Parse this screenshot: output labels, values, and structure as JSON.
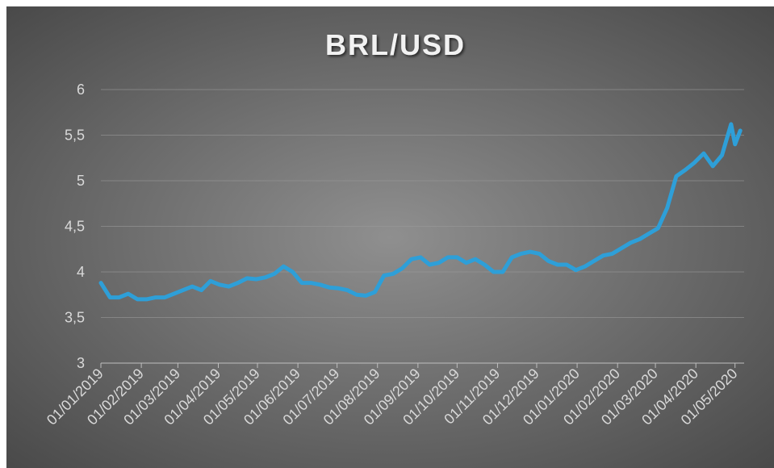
{
  "chart_data": {
    "type": "line",
    "title": "BRL/USD",
    "x": [
      "01/01/2019",
      "08/01/2019",
      "15/01/2019",
      "22/01/2019",
      "29/01/2019",
      "05/02/2019",
      "12/02/2019",
      "19/02/2019",
      "26/02/2019",
      "05/03/2019",
      "12/03/2019",
      "19/03/2019",
      "26/03/2019",
      "02/04/2019",
      "09/04/2019",
      "16/04/2019",
      "23/04/2019",
      "30/04/2019",
      "07/05/2019",
      "14/05/2019",
      "21/05/2019",
      "28/05/2019",
      "04/06/2019",
      "11/06/2019",
      "18/06/2019",
      "25/06/2019",
      "02/07/2019",
      "09/07/2019",
      "16/07/2019",
      "23/07/2019",
      "30/07/2019",
      "06/08/2019",
      "13/08/2019",
      "20/08/2019",
      "27/08/2019",
      "03/09/2019",
      "10/09/2019",
      "17/09/2019",
      "24/09/2019",
      "01/10/2019",
      "08/10/2019",
      "15/10/2019",
      "22/10/2019",
      "29/10/2019",
      "05/11/2019",
      "12/11/2019",
      "19/11/2019",
      "26/11/2019",
      "03/12/2019",
      "10/12/2019",
      "17/12/2019",
      "24/12/2019",
      "31/12/2019",
      "07/01/2020",
      "14/01/2020",
      "21/01/2020",
      "28/01/2020",
      "04/02/2020",
      "11/02/2020",
      "18/02/2020",
      "25/02/2020",
      "03/03/2020",
      "10/03/2020",
      "17/03/2020",
      "24/03/2020",
      "31/03/2020",
      "07/04/2020",
      "14/04/2020",
      "21/04/2020",
      "28/04/2020",
      "01/05/2020",
      "05/05/2020"
    ],
    "series": [
      {
        "name": "BRL/USD",
        "color": "#2e9fd8",
        "values": [
          3.88,
          3.72,
          3.72,
          3.76,
          3.7,
          3.7,
          3.72,
          3.72,
          3.76,
          3.8,
          3.84,
          3.8,
          3.9,
          3.86,
          3.84,
          3.88,
          3.93,
          3.92,
          3.94,
          3.98,
          4.06,
          4.0,
          3.88,
          3.88,
          3.86,
          3.83,
          3.82,
          3.8,
          3.75,
          3.74,
          3.78,
          3.96,
          3.98,
          4.04,
          4.14,
          4.16,
          4.08,
          4.1,
          4.16,
          4.16,
          4.1,
          4.14,
          4.08,
          4.0,
          4.0,
          4.16,
          4.2,
          4.22,
          4.2,
          4.12,
          4.08,
          4.08,
          4.02,
          4.06,
          4.12,
          4.18,
          4.2,
          4.26,
          4.32,
          4.36,
          4.42,
          4.48,
          4.7,
          5.05,
          5.12,
          5.2,
          5.3,
          5.16,
          5.28,
          5.62,
          5.4,
          5.55
        ]
      }
    ],
    "xlim": [
      "01/01/2019",
      "08/05/2020"
    ],
    "xticks": [
      "01/01/2019",
      "01/02/2019",
      "01/03/2019",
      "01/04/2019",
      "01/05/2019",
      "01/06/2019",
      "01/07/2019",
      "01/08/2019",
      "01/09/2019",
      "01/10/2019",
      "01/11/2019",
      "01/12/2019",
      "01/01/2020",
      "01/02/2020",
      "01/03/2020",
      "01/04/2020",
      "01/05/2020"
    ],
    "ylim": [
      3,
      6
    ],
    "yticks": [
      3,
      {
        "value": 3.5,
        "label": "3,5"
      },
      4,
      {
        "value": 4.5,
        "label": "4,5"
      },
      5,
      {
        "value": 5.5,
        "label": "5,5"
      },
      6
    ],
    "grid": true
  }
}
